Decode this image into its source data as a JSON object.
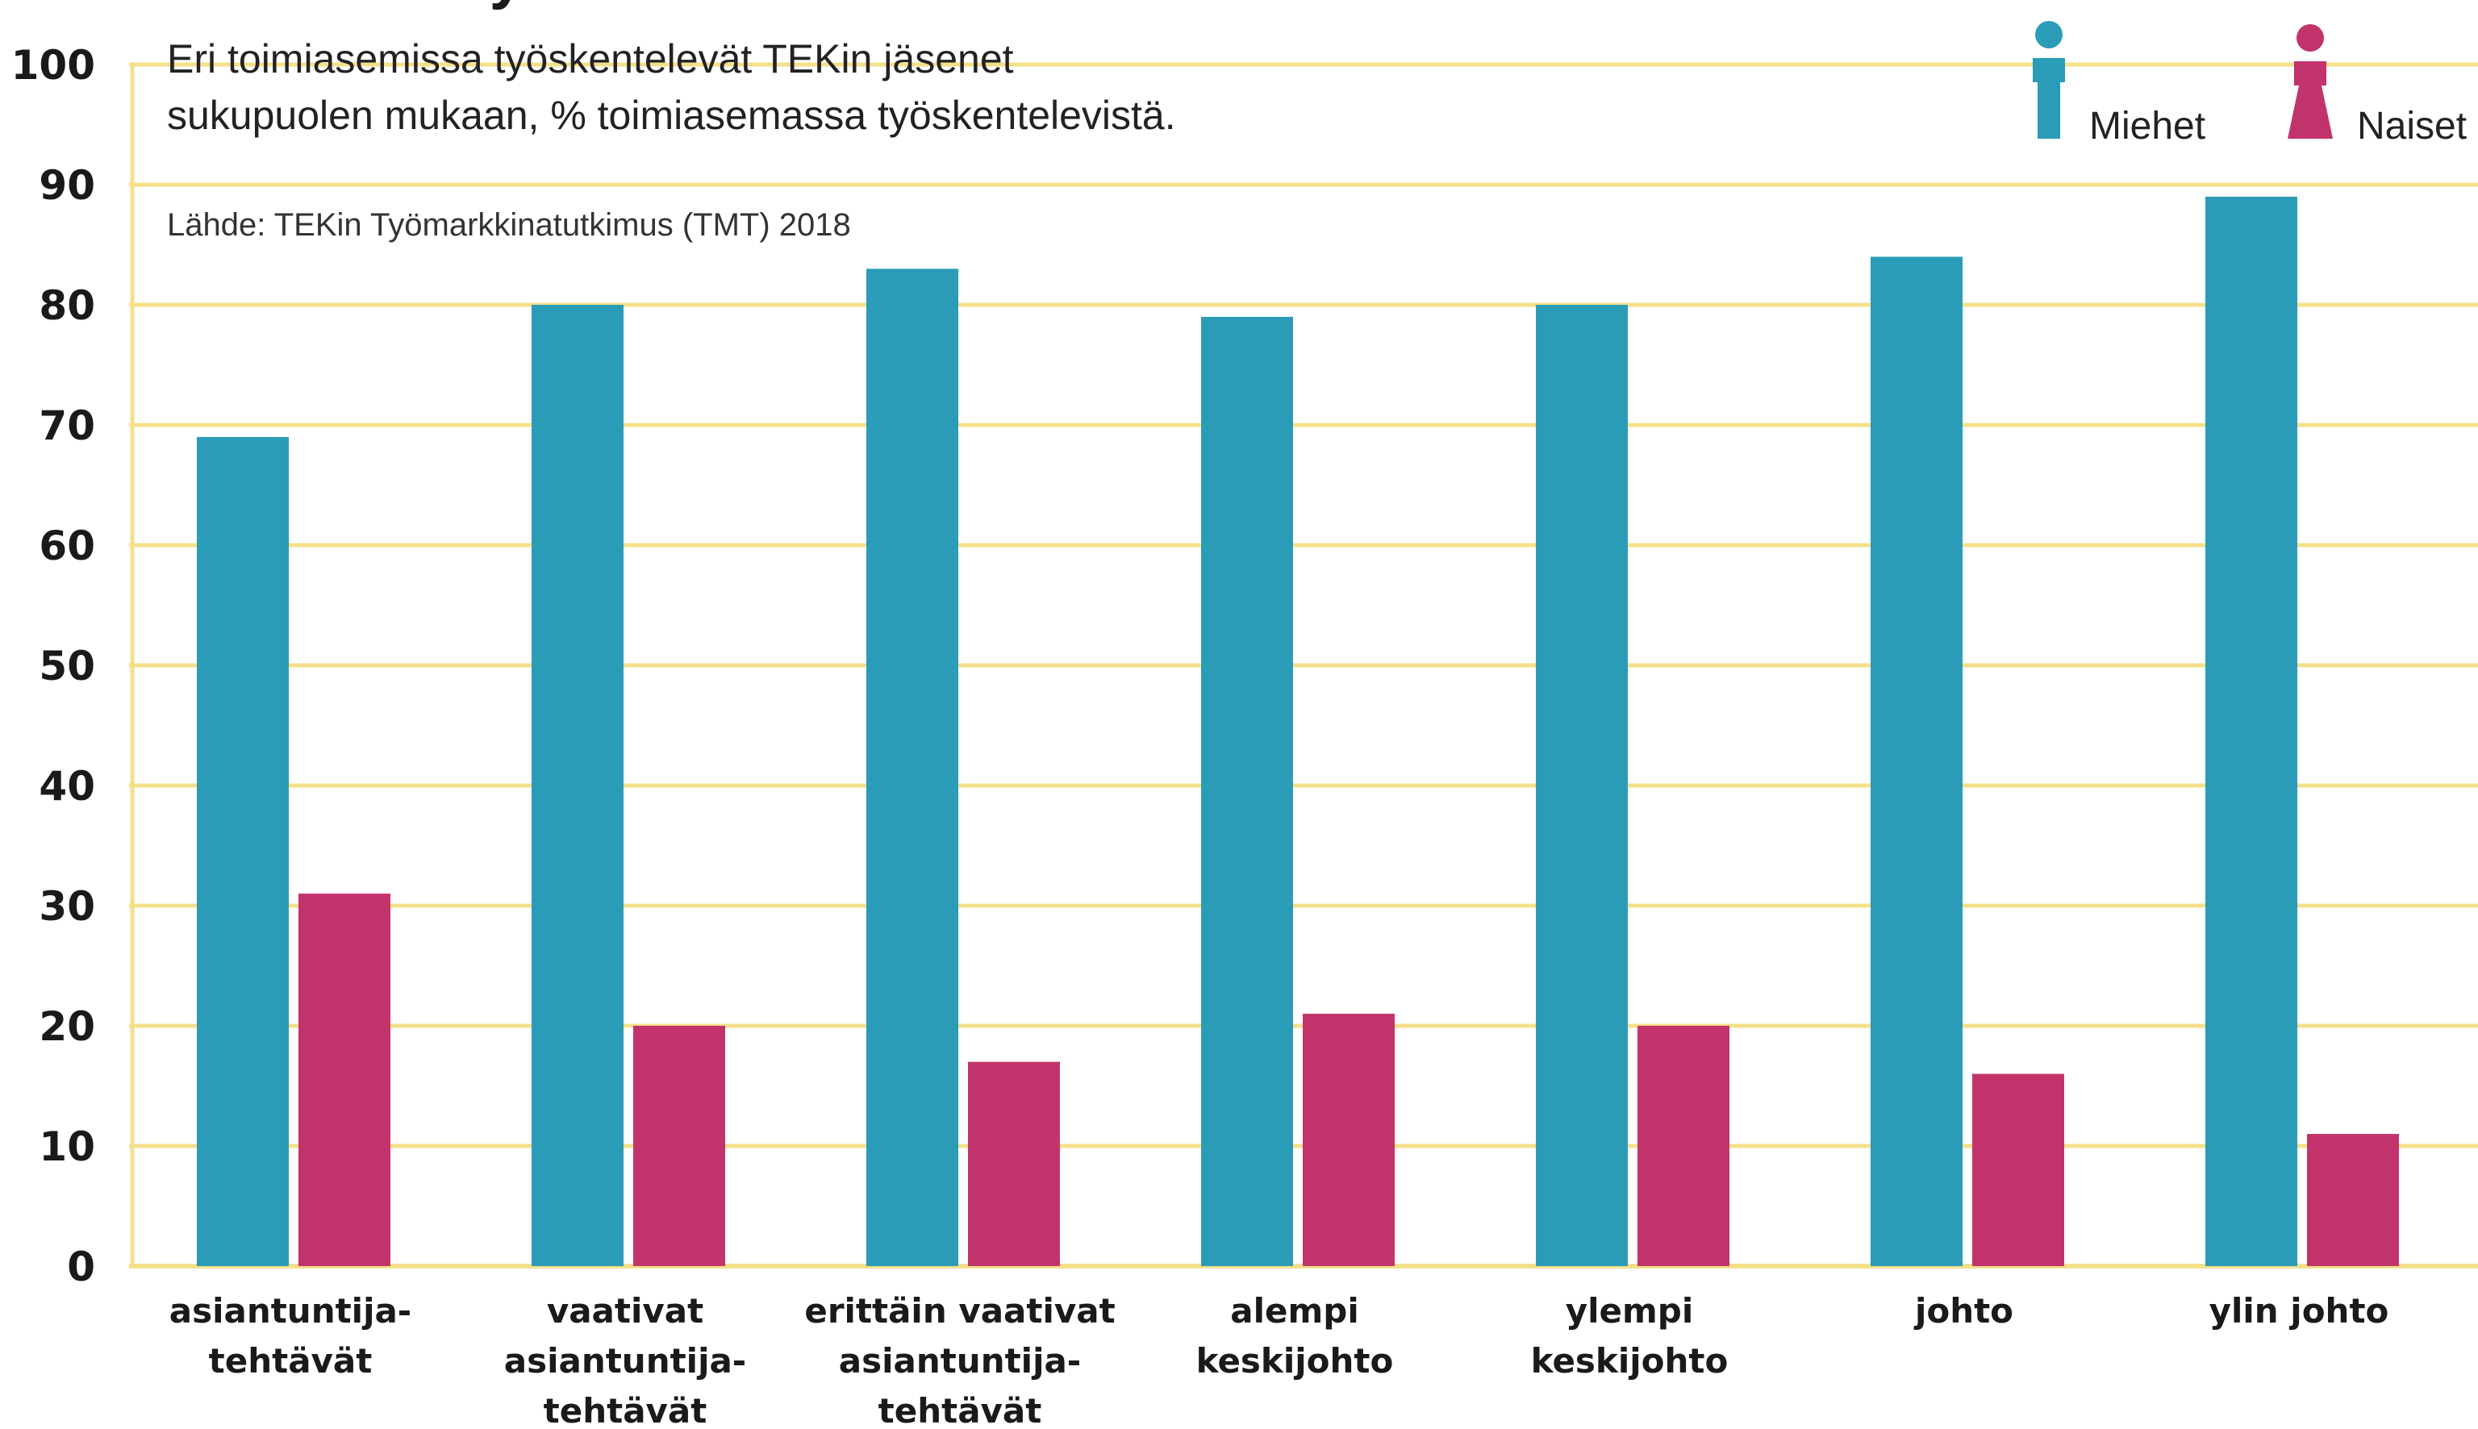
{
  "chart_data": {
    "type": "bar",
    "title": "Tekniikan työssä naiset ... ",
    "subtitle_lines": [
      "Eri toimiasemissa työskentelevät TEKin jäsenet",
      "sukupuolen mukaan, % toimiasemassa työskentelevistä."
    ],
    "source": "Lähde: TEKin Työmarkkinatutkimus (TMT) 2018",
    "categories": [
      [
        "asiantuntija-",
        "tehtävät"
      ],
      [
        "vaativat",
        "asiantuntija-",
        "tehtävät"
      ],
      [
        "erittäin vaativat",
        "asiantuntija-",
        "tehtävät"
      ],
      [
        "alempi",
        "keskijohto"
      ],
      [
        "ylempi",
        "keskijohto"
      ],
      [
        "johto"
      ],
      [
        "ylin johto"
      ]
    ],
    "series": [
      {
        "name": "Miehet",
        "color": "#2a9cb8",
        "values": [
          69,
          80,
          83,
          79,
          80,
          84,
          89
        ]
      },
      {
        "name": "Naiset",
        "color": "#c3336b",
        "values": [
          31,
          20,
          17,
          21,
          20,
          16,
          11
        ]
      }
    ],
    "ylim": [
      0,
      100
    ],
    "yticks": [
      0,
      10,
      20,
      30,
      40,
      50,
      60,
      70,
      80,
      90,
      100
    ],
    "grid": true,
    "grid_color": "#f5e08a",
    "legend_position": "top-right",
    "legend_icons": [
      "man-icon",
      "woman-icon"
    ]
  }
}
